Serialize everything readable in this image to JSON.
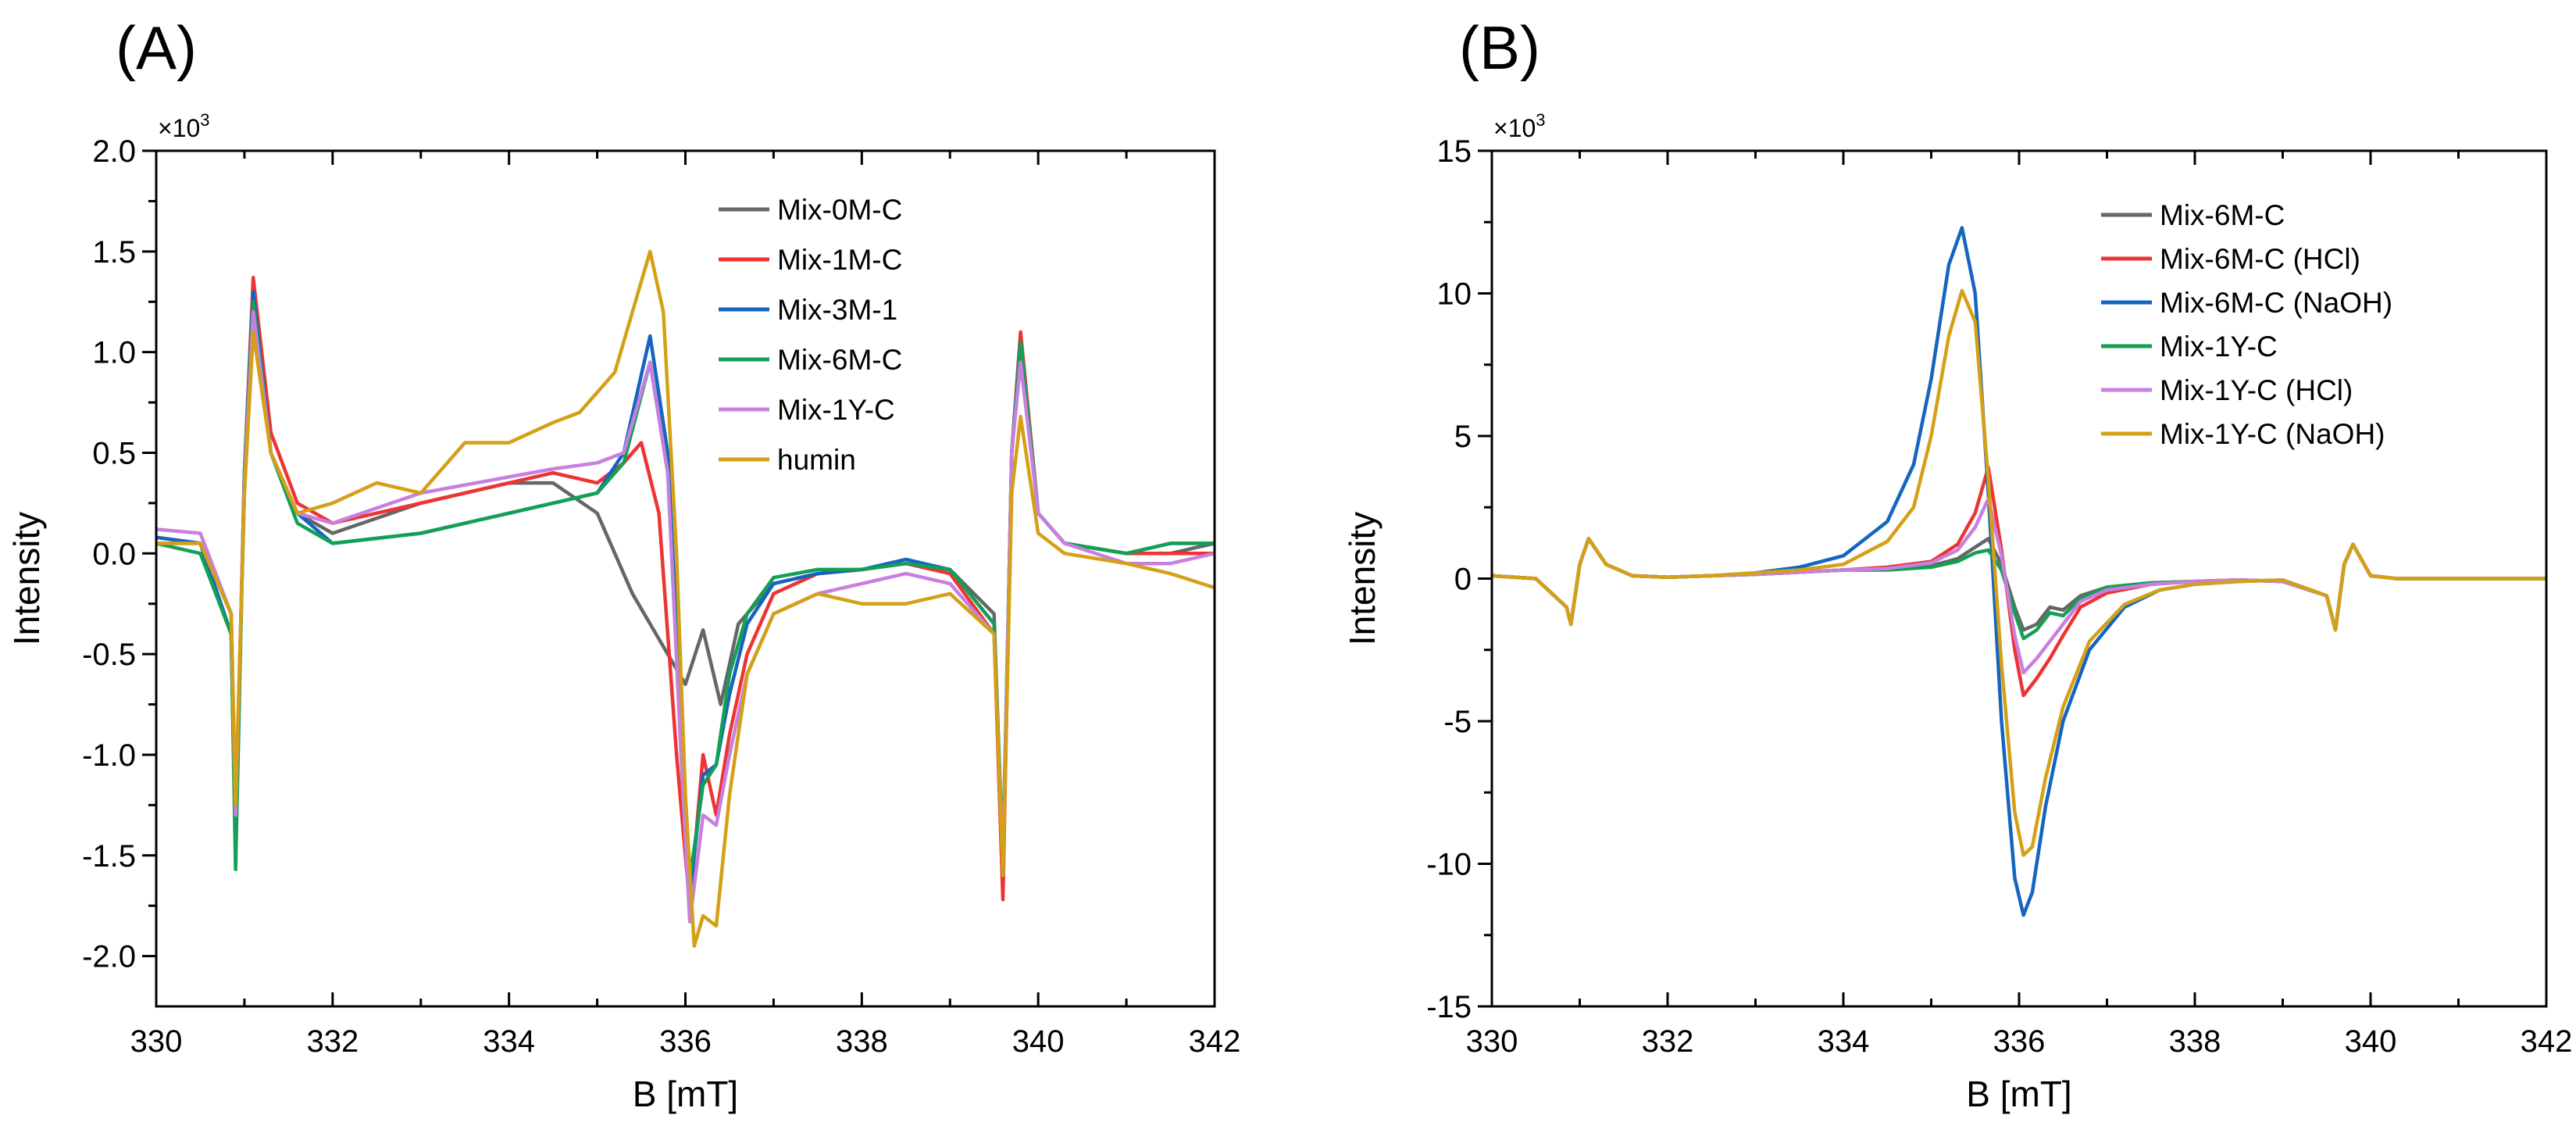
{
  "chart_data": [
    {
      "panel": "(A)",
      "type": "line",
      "xlabel": "B [mT]",
      "ylabel": "Intensity",
      "multiplier": {
        "base": "×10",
        "exp": "3"
      },
      "xlim": [
        330,
        342
      ],
      "ylim": [
        -2.25,
        2.0
      ],
      "xticks": [
        330,
        332,
        334,
        336,
        338,
        340,
        342
      ],
      "xtick_labels": [
        "330",
        "332",
        "334",
        "336",
        "338",
        "340",
        "342"
      ],
      "yticks": [
        -2.0,
        -1.5,
        -1.0,
        -0.5,
        0.0,
        0.5,
        1.0,
        1.5,
        2.0
      ],
      "ytick_labels": [
        "-2.0",
        "-1.5",
        "-1.0",
        "-0.5",
        "0.0",
        "0.5",
        "1.0",
        "1.5",
        "2.0"
      ],
      "legend_position": "top-right",
      "series": [
        {
          "name": "Mix-0M-C",
          "color": "#666666",
          "x": [
            330,
            330.5,
            330.85,
            330.9,
            331.0,
            331.1,
            331.3,
            331.6,
            332,
            333,
            334,
            334.5,
            335,
            335.4,
            335.8,
            336.0,
            336.2,
            336.4,
            336.6,
            337,
            337.5,
            338,
            338.5,
            339,
            339.5,
            339.6,
            339.7,
            339.8,
            340,
            340.3,
            341,
            341.5,
            342
          ],
          "y": [
            0.05,
            0.05,
            -0.3,
            -1.3,
            0.3,
            1.3,
            0.5,
            0.2,
            0.1,
            0.25,
            0.35,
            0.35,
            0.2,
            -0.2,
            -0.5,
            -0.65,
            -0.38,
            -0.75,
            -0.35,
            -0.15,
            -0.1,
            -0.08,
            -0.05,
            -0.08,
            -0.3,
            -1.6,
            0.5,
            1.0,
            0.2,
            0.05,
            0.0,
            0.0,
            0.05
          ]
        },
        {
          "name": "Mix-1M-C",
          "color": "#ee3333",
          "x": [
            330,
            330.5,
            330.85,
            330.9,
            331.0,
            331.1,
            331.3,
            331.6,
            332,
            333,
            334,
            334.5,
            335,
            335.3,
            335.5,
            335.7,
            335.9,
            336.05,
            336.2,
            336.35,
            336.5,
            336.7,
            337,
            337.5,
            338,
            338.5,
            339,
            339.5,
            339.6,
            339.7,
            339.8,
            340,
            340.3,
            341,
            341.5,
            342
          ],
          "y": [
            0.08,
            0.05,
            -0.4,
            -1.4,
            0.4,
            1.37,
            0.6,
            0.25,
            0.15,
            0.25,
            0.35,
            0.4,
            0.35,
            0.45,
            0.55,
            0.2,
            -1.0,
            -1.75,
            -1.0,
            -1.3,
            -0.9,
            -0.5,
            -0.2,
            -0.1,
            -0.08,
            -0.05,
            -0.1,
            -0.4,
            -1.72,
            0.5,
            1.1,
            0.2,
            0.05,
            0.0,
            0.0,
            0.0
          ]
        },
        {
          "name": "Mix-3M-1",
          "color": "#1565c0",
          "x": [
            330,
            330.5,
            330.85,
            330.9,
            331.0,
            331.1,
            331.3,
            331.6,
            332,
            333,
            334,
            334.5,
            335,
            335.3,
            335.6,
            335.8,
            335.95,
            336.05,
            336.2,
            336.35,
            336.5,
            336.7,
            337,
            337.5,
            338,
            338.5,
            339,
            339.5,
            339.6,
            339.7,
            339.8,
            340,
            340.3,
            341,
            341.5,
            342
          ],
          "y": [
            0.08,
            0.05,
            -0.4,
            -1.45,
            0.4,
            1.3,
            0.5,
            0.2,
            0.05,
            0.1,
            0.2,
            0.25,
            0.3,
            0.5,
            1.08,
            0.5,
            -0.8,
            -1.7,
            -1.1,
            -1.05,
            -0.7,
            -0.35,
            -0.15,
            -0.1,
            -0.08,
            -0.03,
            -0.08,
            -0.35,
            -1.6,
            0.5,
            1.05,
            0.2,
            0.05,
            0.0,
            0.05,
            0.05
          ]
        },
        {
          "name": "Mix-6M-C",
          "color": "#13a055",
          "x": [
            330,
            330.5,
            330.85,
            330.9,
            331.0,
            331.1,
            331.3,
            331.6,
            332,
            333,
            334,
            334.5,
            335,
            335.3,
            335.6,
            335.8,
            335.95,
            336.05,
            336.2,
            336.35,
            336.5,
            336.7,
            337,
            337.5,
            338,
            338.5,
            339,
            339.5,
            339.6,
            339.7,
            339.8,
            340,
            340.3,
            341,
            341.5,
            342
          ],
          "y": [
            0.05,
            0.0,
            -0.4,
            -1.57,
            0.4,
            1.25,
            0.5,
            0.15,
            0.05,
            0.1,
            0.2,
            0.25,
            0.3,
            0.45,
            0.95,
            0.4,
            -0.9,
            -1.62,
            -1.15,
            -1.05,
            -0.6,
            -0.3,
            -0.12,
            -0.08,
            -0.08,
            -0.05,
            -0.08,
            -0.35,
            -1.5,
            0.5,
            1.05,
            0.2,
            0.05,
            0.0,
            0.05,
            0.05
          ]
        },
        {
          "name": "Mix-1Y-C",
          "color": "#c77fe0",
          "x": [
            330,
            330.5,
            330.85,
            330.9,
            331.0,
            331.1,
            331.3,
            331.6,
            332,
            333,
            334,
            334.5,
            335,
            335.3,
            335.6,
            335.8,
            335.95,
            336.05,
            336.2,
            336.35,
            336.5,
            336.7,
            337,
            337.5,
            338,
            338.5,
            339,
            339.5,
            339.6,
            339.7,
            339.8,
            340,
            340.3,
            341,
            341.5,
            342
          ],
          "y": [
            0.12,
            0.1,
            -0.3,
            -1.3,
            0.35,
            1.2,
            0.5,
            0.2,
            0.15,
            0.3,
            0.38,
            0.42,
            0.45,
            0.5,
            0.95,
            0.4,
            -1.0,
            -1.83,
            -1.3,
            -1.35,
            -1.0,
            -0.6,
            -0.3,
            -0.2,
            -0.15,
            -0.1,
            -0.15,
            -0.4,
            -1.55,
            0.5,
            0.95,
            0.2,
            0.05,
            -0.05,
            -0.05,
            0.0
          ]
        },
        {
          "name": "humin",
          "color": "#d4a017",
          "x": [
            330,
            330.5,
            330.85,
            330.9,
            331.0,
            331.1,
            331.3,
            331.6,
            332,
            332.5,
            333,
            333.5,
            334,
            334.5,
            334.8,
            335,
            335.2,
            335.4,
            335.6,
            335.75,
            335.9,
            336.0,
            336.1,
            336.2,
            336.35,
            336.5,
            336.7,
            337,
            337.5,
            338,
            338.5,
            339,
            339.5,
            339.6,
            339.7,
            339.8,
            340,
            340.3,
            341,
            341.5,
            342
          ],
          "y": [
            0.05,
            0.05,
            -0.3,
            -1.25,
            0.3,
            1.1,
            0.5,
            0.2,
            0.25,
            0.35,
            0.3,
            0.55,
            0.55,
            0.65,
            0.7,
            0.8,
            0.9,
            1.2,
            1.5,
            1.2,
            0.0,
            -1.2,
            -1.95,
            -1.8,
            -1.85,
            -1.2,
            -0.6,
            -0.3,
            -0.2,
            -0.25,
            -0.25,
            -0.2,
            -0.4,
            -1.6,
            0.3,
            0.68,
            0.1,
            0.0,
            -0.05,
            -0.1,
            -0.17
          ]
        }
      ]
    },
    {
      "panel": "(B)",
      "type": "line",
      "xlabel": "B [mT]",
      "ylabel": "Intensity",
      "multiplier": {
        "base": "×10",
        "exp": "3"
      },
      "xlim": [
        330,
        342
      ],
      "ylim": [
        -15,
        15
      ],
      "xticks": [
        330,
        332,
        334,
        336,
        338,
        340,
        342
      ],
      "xtick_labels": [
        "330",
        "332",
        "334",
        "336",
        "338",
        "340",
        "342"
      ],
      "yticks": [
        -15,
        -10,
        -5,
        0,
        5,
        10,
        15
      ],
      "ytick_labels": [
        "-15",
        "-10",
        "-5",
        "0",
        "5",
        "10",
        "15"
      ],
      "legend_position": "top-right",
      "series": [
        {
          "name": "Mix-6M-C",
          "color": "#666666",
          "x": [
            330,
            330.5,
            330.85,
            330.9,
            331.0,
            331.1,
            331.3,
            331.6,
            332,
            333,
            334,
            334.5,
            335,
            335.3,
            335.5,
            335.65,
            335.8,
            335.95,
            336.05,
            336.2,
            336.35,
            336.5,
            336.7,
            337,
            337.5,
            338,
            338.5,
            339,
            339.5,
            339.6,
            339.7,
            339.8,
            340,
            340.3,
            341,
            341.5,
            342
          ],
          "y": [
            0.1,
            0.0,
            -1.0,
            -1.6,
            0.5,
            1.4,
            0.5,
            0.1,
            0.05,
            0.15,
            0.3,
            0.35,
            0.45,
            0.7,
            1.1,
            1.4,
            0.5,
            -1.0,
            -1.8,
            -1.6,
            -1.0,
            -1.1,
            -0.6,
            -0.3,
            -0.15,
            -0.1,
            -0.05,
            -0.1,
            -0.6,
            -1.8,
            0.5,
            1.2,
            0.1,
            0.0,
            0.0,
            0.0,
            0.0
          ]
        },
        {
          "name": "Mix-6M-C (HCl)",
          "color": "#ee3333",
          "x": [
            330,
            330.5,
            330.85,
            330.9,
            331.0,
            331.1,
            331.3,
            331.6,
            332,
            333,
            334,
            334.5,
            335,
            335.3,
            335.5,
            335.65,
            335.8,
            335.95,
            336.05,
            336.2,
            336.35,
            336.5,
            336.7,
            337,
            337.5,
            338,
            338.5,
            339,
            339.5,
            339.6,
            339.7,
            339.8,
            340,
            340.3,
            341,
            341.5,
            342
          ],
          "y": [
            0.1,
            0.0,
            -1.0,
            -1.6,
            0.5,
            1.4,
            0.5,
            0.1,
            0.05,
            0.15,
            0.3,
            0.4,
            0.6,
            1.2,
            2.3,
            3.9,
            1.0,
            -2.5,
            -4.1,
            -3.5,
            -2.8,
            -2.0,
            -1.0,
            -0.5,
            -0.2,
            -0.1,
            -0.05,
            -0.1,
            -0.6,
            -1.8,
            0.5,
            1.2,
            0.1,
            0.0,
            0.0,
            0.0,
            0.0
          ]
        },
        {
          "name": "Mix-6M-C (NaOH)",
          "color": "#1565c0",
          "x": [
            330,
            330.5,
            330.85,
            330.9,
            331.0,
            331.1,
            331.3,
            331.6,
            332,
            332.5,
            333,
            333.5,
            334,
            334.5,
            334.8,
            335.0,
            335.2,
            335.35,
            335.5,
            335.65,
            335.8,
            335.95,
            336.05,
            336.15,
            336.3,
            336.5,
            336.8,
            337.2,
            337.6,
            338,
            338.5,
            339,
            339.5,
            339.6,
            339.7,
            339.8,
            340,
            340.3,
            341,
            341.5,
            342
          ],
          "y": [
            0.1,
            0.0,
            -1.0,
            -1.6,
            0.5,
            1.4,
            0.5,
            0.1,
            0.05,
            0.1,
            0.2,
            0.4,
            0.8,
            2.0,
            4.0,
            7.0,
            11.0,
            12.3,
            10.0,
            3.0,
            -5.0,
            -10.5,
            -11.8,
            -11.0,
            -8.0,
            -5.0,
            -2.5,
            -1.0,
            -0.4,
            -0.2,
            -0.1,
            -0.05,
            -0.6,
            -1.8,
            0.5,
            1.2,
            0.1,
            0.0,
            0.0,
            0.0,
            0.0
          ]
        },
        {
          "name": "Mix-1Y-C",
          "color": "#13a055",
          "x": [
            330,
            330.5,
            330.85,
            330.9,
            331.0,
            331.1,
            331.3,
            331.6,
            332,
            333,
            334,
            334.5,
            335,
            335.3,
            335.5,
            335.65,
            335.8,
            335.95,
            336.05,
            336.2,
            336.35,
            336.5,
            336.7,
            337,
            337.5,
            338,
            338.5,
            339,
            339.5,
            339.6,
            339.7,
            339.8,
            340,
            340.3,
            341,
            341.5,
            342
          ],
          "y": [
            0.1,
            0.0,
            -1.0,
            -1.6,
            0.5,
            1.4,
            0.5,
            0.1,
            0.05,
            0.15,
            0.3,
            0.3,
            0.4,
            0.6,
            0.9,
            1.0,
            0.3,
            -1.2,
            -2.1,
            -1.8,
            -1.2,
            -1.3,
            -0.7,
            -0.3,
            -0.15,
            -0.1,
            -0.05,
            -0.1,
            -0.6,
            -1.8,
            0.5,
            1.2,
            0.1,
            0.0,
            0.0,
            0.0,
            0.0
          ]
        },
        {
          "name": "Mix-1Y-C (HCl)",
          "color": "#c77fe0",
          "x": [
            330,
            330.5,
            330.85,
            330.9,
            331.0,
            331.1,
            331.3,
            331.6,
            332,
            333,
            334,
            334.5,
            335,
            335.3,
            335.5,
            335.65,
            335.8,
            335.95,
            336.05,
            336.2,
            336.35,
            336.5,
            336.7,
            337,
            337.5,
            338,
            338.5,
            339,
            339.5,
            339.6,
            339.7,
            339.8,
            340,
            340.3,
            341,
            341.5,
            342
          ],
          "y": [
            0.1,
            0.0,
            -1.0,
            -1.6,
            0.5,
            1.4,
            0.5,
            0.1,
            0.05,
            0.15,
            0.3,
            0.35,
            0.55,
            1.0,
            1.8,
            2.8,
            0.8,
            -2.0,
            -3.3,
            -2.8,
            -2.2,
            -1.6,
            -0.8,
            -0.4,
            -0.2,
            -0.1,
            -0.05,
            -0.1,
            -0.6,
            -1.8,
            0.5,
            1.2,
            0.1,
            0.0,
            0.0,
            0.0,
            0.0
          ]
        },
        {
          "name": "Mix-1Y-C (NaOH)",
          "color": "#d4a017",
          "x": [
            330,
            330.5,
            330.85,
            330.9,
            331.0,
            331.1,
            331.3,
            331.6,
            332,
            332.5,
            333,
            333.5,
            334,
            334.5,
            334.8,
            335.0,
            335.2,
            335.35,
            335.5,
            335.65,
            335.8,
            335.95,
            336.05,
            336.15,
            336.3,
            336.5,
            336.8,
            337.2,
            337.6,
            338,
            338.5,
            339,
            339.5,
            339.6,
            339.7,
            339.8,
            340,
            340.3,
            341,
            341.5,
            342
          ],
          "y": [
            0.1,
            0.0,
            -1.0,
            -1.6,
            0.5,
            1.4,
            0.5,
            0.1,
            0.05,
            0.1,
            0.2,
            0.3,
            0.5,
            1.3,
            2.5,
            5.0,
            8.5,
            10.1,
            9.0,
            3.5,
            -3.0,
            -8.2,
            -9.7,
            -9.4,
            -7.0,
            -4.5,
            -2.2,
            -0.9,
            -0.4,
            -0.2,
            -0.1,
            -0.05,
            -0.6,
            -1.8,
            0.5,
            1.2,
            0.1,
            0.0,
            0.0,
            0.0,
            0.0
          ]
        }
      ]
    }
  ]
}
